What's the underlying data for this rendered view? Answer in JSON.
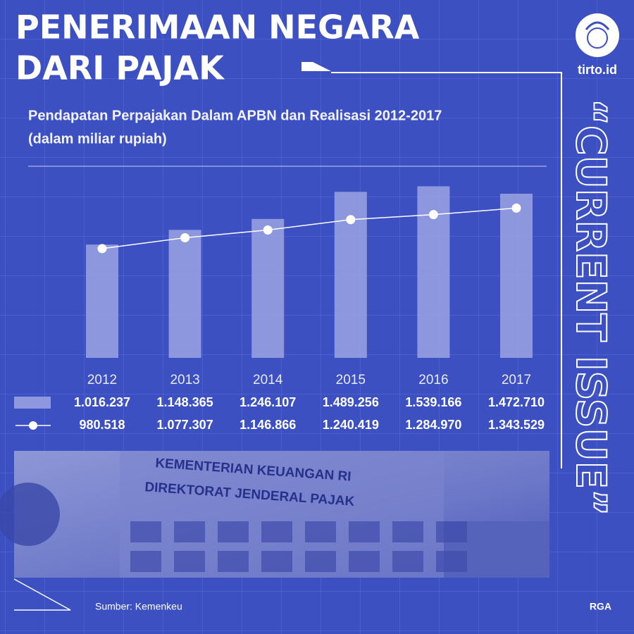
{
  "header": {
    "title": [
      "PENERIMAAN NEGARA",
      "DARI PAJAK"
    ],
    "brand": "tirto.id",
    "side_label": "“CURRENT ISSUE”"
  },
  "chart_data": {
    "type": "bar_line",
    "title": "Pendapatan Perpajakan Dalam APBN dan Realisasi 2012-2017",
    "subtitle": "(dalam miliar rupiah)",
    "categories": [
      "2012",
      "2013",
      "2014",
      "2015",
      "2016",
      "2017"
    ],
    "ylim": [
      0,
      1700000
    ],
    "series": [
      {
        "type": "bar",
        "color": "#9aa3e2",
        "values": [
          1016237,
          1148365,
          1246107,
          1489256,
          1539166,
          1472710
        ],
        "value_labels": [
          "1.016.237",
          "1.148.365",
          "1.246.107",
          "1.489.256",
          "1.539.166",
          "1.472.710"
        ]
      },
      {
        "type": "line",
        "color": "#ffffff",
        "values": [
          980518,
          1077307,
          1146866,
          1240419,
          1284970,
          1343529
        ],
        "value_labels": [
          "980.518",
          "1.077.307",
          "1.146.866",
          "1.240.419",
          "1.284.970",
          "1.343.529"
        ]
      }
    ]
  },
  "photo": {
    "sign": [
      "KEMENTERIAN KEUANGAN RI",
      "DIREKTORAT JENDERAL PAJAK"
    ]
  },
  "footer": {
    "source": "Sumber: Kemenkeu",
    "credit": "RGA"
  }
}
